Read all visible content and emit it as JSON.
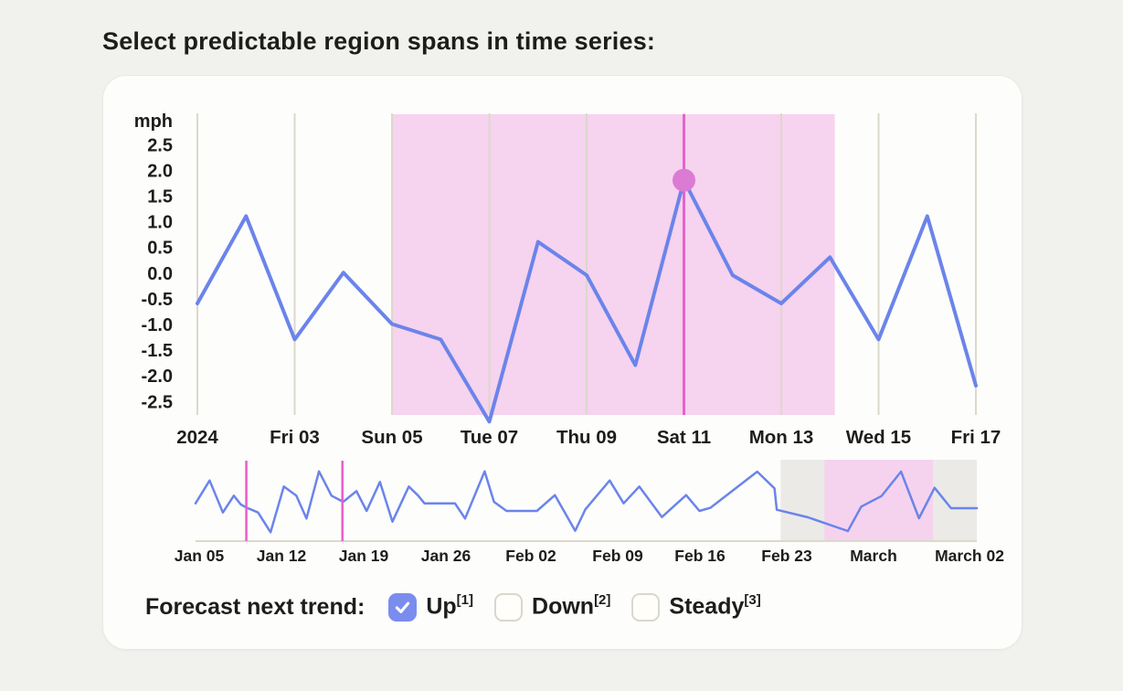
{
  "title": "Select predictable region spans in time series:",
  "colors": {
    "series_blue": "#6b84eb",
    "checkbox_blue": "#7a8def",
    "selected_region_pink": "#f6d3ee",
    "focus_line_magenta": "#e564ca",
    "focus_dot_magenta": "#db7bd3",
    "minimap_cursor_magenta": "#ea5ec9",
    "minimap_grey_band": "#ebeae6",
    "minimap_pink_band": "#f5d3ee",
    "gridline": "#dcd8cd",
    "text": "#1d1d1b"
  },
  "chart_data": [
    {
      "name": "main-series",
      "type": "line",
      "title": "",
      "ylabel_unit": "mph",
      "y_tick_labels": [
        "2.5",
        "2.0",
        "1.5",
        "1.0",
        "0.5",
        "0.0",
        "-0.5",
        "-1.0",
        "-1.5",
        "-2.0",
        "-2.5"
      ],
      "ylim": [
        -2.5,
        2.5
      ],
      "grid": "vertical-only",
      "x_tick_labels": [
        "2024",
        "Fri 03",
        "Sun 05",
        "Tue 07",
        "Thu 09",
        "Sat 11",
        "Mon 13",
        "Wed 15",
        "Fri 17"
      ],
      "x_ticks_every_n_points": 2,
      "values": [
        -0.6,
        1.1,
        -1.3,
        0.0,
        -1.0,
        -1.3,
        -2.9,
        0.6,
        -0.05,
        -1.8,
        1.8,
        -0.05,
        -0.6,
        0.3,
        -1.3,
        1.1,
        -2.2
      ],
      "selected_region": {
        "start_point_index": 4,
        "end_point_index": 13.1,
        "start_label": "Sun 05"
      },
      "selected_point": {
        "point_index": 10,
        "value": 1.8,
        "x_label": "Sat 11"
      }
    },
    {
      "name": "overview-minimap",
      "type": "line",
      "x_tick_labels": [
        "Jan 05",
        "Jan 12",
        "Jan 19",
        "Jan 26",
        "Feb 02",
        "Feb 09",
        "Feb 16",
        "Feb 23",
        "March",
        "March 02"
      ],
      "points_normalized": [
        [
          0.0,
          0.53
        ],
        [
          0.018,
          0.252
        ],
        [
          0.035,
          0.641
        ],
        [
          0.049,
          0.437
        ],
        [
          0.058,
          0.544
        ],
        [
          0.066,
          0.585
        ],
        [
          0.08,
          0.641
        ],
        [
          0.096,
          0.881
        ],
        [
          0.113,
          0.326
        ],
        [
          0.129,
          0.437
        ],
        [
          0.142,
          0.714
        ],
        [
          0.158,
          0.141
        ],
        [
          0.174,
          0.437
        ],
        [
          0.189,
          0.511
        ],
        [
          0.206,
          0.381
        ],
        [
          0.219,
          0.622
        ],
        [
          0.236,
          0.27
        ],
        [
          0.252,
          0.752
        ],
        [
          0.273,
          0.326
        ],
        [
          0.285,
          0.437
        ],
        [
          0.293,
          0.53
        ],
        [
          0.332,
          0.53
        ],
        [
          0.345,
          0.714
        ],
        [
          0.37,
          0.141
        ],
        [
          0.382,
          0.511
        ],
        [
          0.398,
          0.622
        ],
        [
          0.437,
          0.622
        ],
        [
          0.46,
          0.43
        ],
        [
          0.486,
          0.863
        ],
        [
          0.499,
          0.603
        ],
        [
          0.53,
          0.252
        ],
        [
          0.548,
          0.53
        ],
        [
          0.568,
          0.326
        ],
        [
          0.597,
          0.697
        ],
        [
          0.628,
          0.43
        ],
        [
          0.645,
          0.622
        ],
        [
          0.659,
          0.585
        ],
        [
          0.719,
          0.144
        ],
        [
          0.741,
          0.348
        ],
        [
          0.744,
          0.608
        ],
        [
          0.784,
          0.7
        ],
        [
          0.835,
          0.867
        ],
        [
          0.852,
          0.57
        ],
        [
          0.878,
          0.441
        ],
        [
          0.903,
          0.144
        ],
        [
          0.926,
          0.711
        ],
        [
          0.946,
          0.341
        ],
        [
          0.967,
          0.589
        ],
        [
          1.0,
          0.589
        ]
      ],
      "grey_band": {
        "start": 0.749,
        "end": 1.0
      },
      "pink_band": {
        "start": 0.805,
        "end": 0.944
      },
      "cursor_lines": [
        0.065,
        0.188
      ]
    }
  ],
  "forecast": {
    "label": "Forecast next trend:",
    "options": [
      {
        "label": "Up",
        "sup": "[1]",
        "checked": true
      },
      {
        "label": "Down",
        "sup": "[2]",
        "checked": false
      },
      {
        "label": "Steady",
        "sup": "[3]",
        "checked": false
      }
    ]
  }
}
